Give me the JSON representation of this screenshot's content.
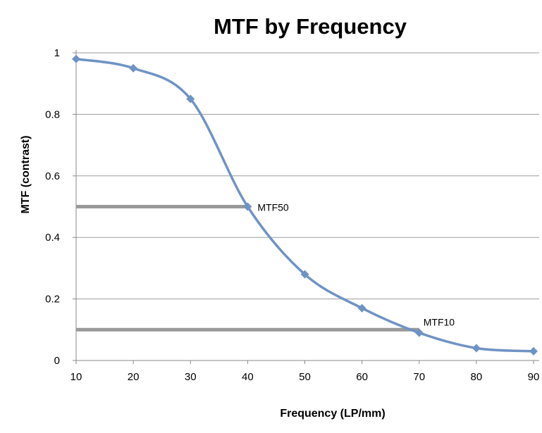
{
  "chart_data": {
    "type": "line",
    "title": "MTF by Frequency",
    "xlabel": "Frequency (LP/mm)",
    "ylabel": "MTF (contrast)",
    "x": [
      10,
      20,
      30,
      40,
      50,
      60,
      70,
      80,
      90
    ],
    "series": [
      {
        "values": [
          0.98,
          0.95,
          0.85,
          0.5,
          0.28,
          0.17,
          0.09,
          0.04,
          0.03
        ],
        "color": "#6f93c4",
        "marker": "diamond",
        "smooth": true
      }
    ],
    "xlim": [
      10,
      90
    ],
    "ylim": [
      0,
      1
    ],
    "xticks": [
      "10",
      "20",
      "30",
      "40",
      "50",
      "60",
      "70",
      "80",
      "90"
    ],
    "yticks": [
      "0",
      "0.2",
      "0.4",
      "0.6",
      "0.8",
      "1"
    ],
    "grid": "horizontal",
    "legend": "none",
    "annotations": [
      {
        "label": "MTF50",
        "x": 40,
        "y": 0.5
      },
      {
        "label": "MTF10",
        "x": 70,
        "y": 0.1
      }
    ],
    "reference_lines": [
      {
        "y": 0.5,
        "x_start": 10,
        "x_end": 40,
        "color": "#999999"
      },
      {
        "y": 0.1,
        "x_start": 10,
        "x_end": 70,
        "color": "#999999"
      }
    ]
  }
}
